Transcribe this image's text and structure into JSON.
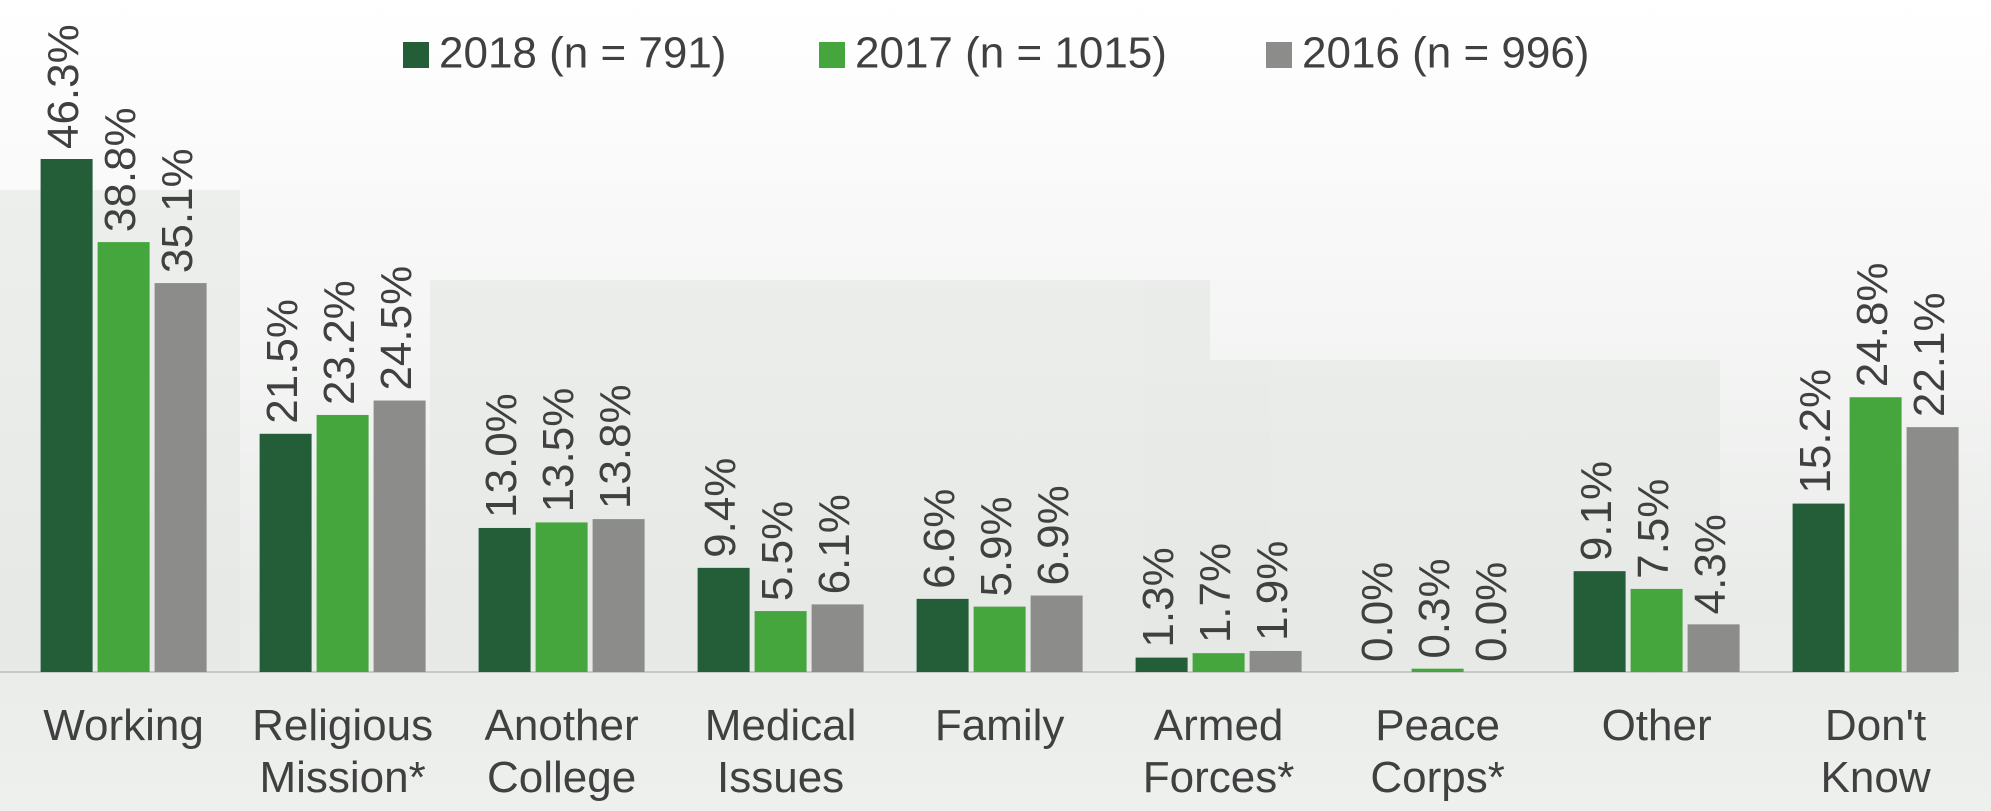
{
  "chart_data": {
    "type": "bar",
    "categories": [
      "Working",
      "Religious Mission*",
      "Another College",
      "Medical Issues",
      "Family",
      "Armed Forces*",
      "Peace Corps*",
      "Other",
      "Don't Know"
    ],
    "series": [
      {
        "name": "2018 (n = 791)",
        "color": "#245e38",
        "values": [
          46.3,
          21.5,
          13.0,
          9.4,
          6.6,
          1.3,
          0.0,
          9.1,
          15.2
        ],
        "value_labels": [
          "46.3%",
          "21.5%",
          "13.0%",
          "9.4%",
          "6.6%",
          "1.3%",
          "0.0%",
          "9.1%",
          "15.2%"
        ]
      },
      {
        "name": "2017 (n = 1015)",
        "color": "#46a63e",
        "values": [
          38.8,
          23.2,
          13.5,
          5.5,
          5.9,
          1.7,
          0.3,
          7.5,
          24.8
        ],
        "value_labels": [
          "38.8%",
          "23.2%",
          "13.5%",
          "5.5%",
          "5.9%",
          "1.7%",
          "0.3%",
          "7.5%",
          "24.8%"
        ]
      },
      {
        "name": "2016 (n = 996)",
        "color": "#8c8c8a",
        "values": [
          35.1,
          24.5,
          13.8,
          6.1,
          6.9,
          1.9,
          0.0,
          4.3,
          22.1
        ],
        "value_labels": [
          "35.1%",
          "24.5%",
          "13.8%",
          "6.1%",
          "6.9%",
          "1.9%",
          "0.0%",
          "4.3%",
          "22.1%"
        ]
      }
    ],
    "legend": "top"
  }
}
